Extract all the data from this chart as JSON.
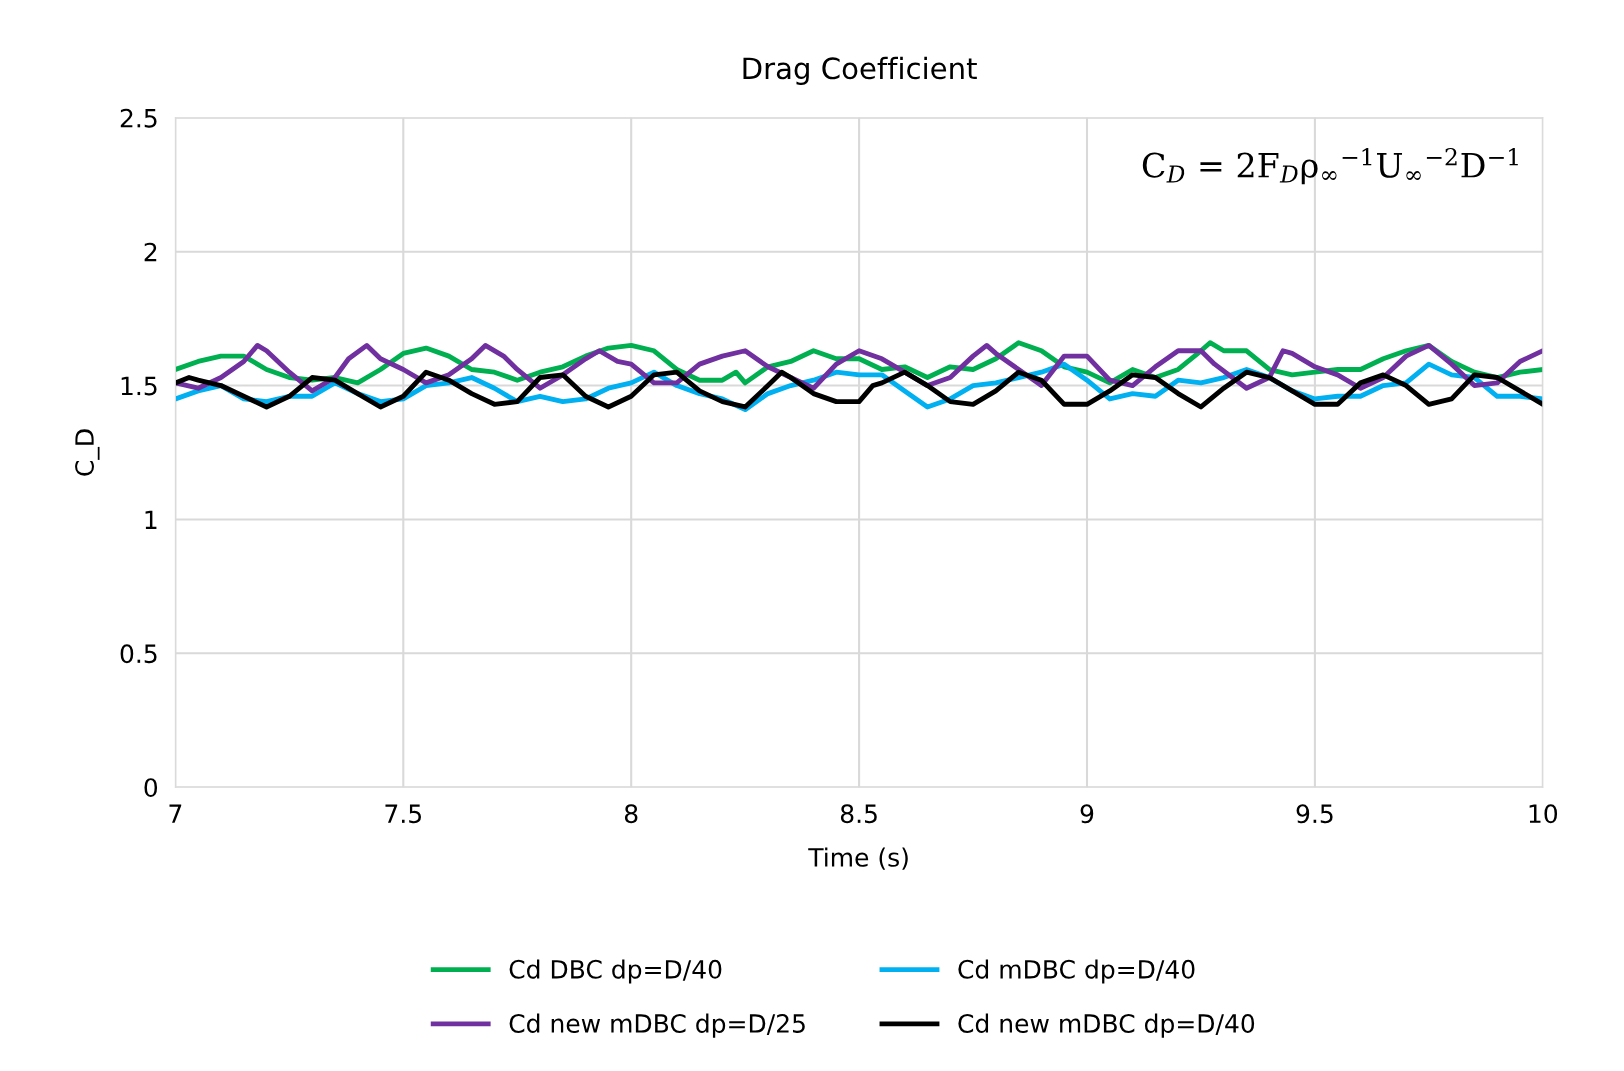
{
  "chart_data": {
    "type": "line",
    "title": "Drag Coefficient",
    "xlabel": "Time (s)",
    "ylabel": "C_D",
    "xlim": [
      7,
      10
    ],
    "xticks": [
      7,
      7.5,
      8,
      8.5,
      9,
      9.5,
      10
    ],
    "ylim": [
      0,
      2.5
    ],
    "yticks": [
      0,
      0.5,
      1,
      1.5,
      2,
      2.5
    ],
    "grid": true,
    "legend": "bottom",
    "marker": "none",
    "line_style": "solid",
    "annotations": [
      "C$_{D}$ = 2F$_{D}$ρ$_{∞}$$^{−1}$U$_{∞}$$^{−2}$D$^{−1}$"
    ],
    "series": [
      {
        "name": "Cd DBC dp=D/40",
        "color": "#00b050",
        "x": [
          7.0,
          7.05,
          7.1,
          7.15,
          7.2,
          7.25,
          7.3,
          7.35,
          7.4,
          7.45,
          7.5,
          7.55,
          7.6,
          7.65,
          7.7,
          7.75,
          7.8,
          7.85,
          7.9,
          7.95,
          8.0,
          8.05,
          8.1,
          8.15,
          8.2,
          8.23,
          8.25,
          8.3,
          8.35,
          8.4,
          8.45,
          8.5,
          8.55,
          8.6,
          8.65,
          8.7,
          8.75,
          8.8,
          8.85,
          8.9,
          8.95,
          9.0,
          9.05,
          9.1,
          9.15,
          9.2,
          9.25,
          9.27,
          9.3,
          9.35,
          9.4,
          9.45,
          9.5,
          9.55,
          9.6,
          9.65,
          9.7,
          9.75,
          9.8,
          9.85,
          9.9,
          9.95,
          10.0
        ],
        "values": [
          1.56,
          1.59,
          1.61,
          1.61,
          1.56,
          1.53,
          1.52,
          1.53,
          1.51,
          1.56,
          1.62,
          1.64,
          1.61,
          1.56,
          1.55,
          1.52,
          1.55,
          1.57,
          1.61,
          1.64,
          1.65,
          1.63,
          1.56,
          1.52,
          1.52,
          1.55,
          1.51,
          1.57,
          1.59,
          1.63,
          1.6,
          1.6,
          1.56,
          1.57,
          1.53,
          1.57,
          1.56,
          1.6,
          1.66,
          1.63,
          1.57,
          1.55,
          1.51,
          1.56,
          1.53,
          1.56,
          1.63,
          1.66,
          1.63,
          1.63,
          1.56,
          1.54,
          1.55,
          1.56,
          1.56,
          1.6,
          1.63,
          1.65,
          1.59,
          1.55,
          1.53,
          1.55,
          1.56
        ]
      },
      {
        "name": "Cd mDBC dp=D/40",
        "color": "#00b0f0",
        "x": [
          7.0,
          7.05,
          7.1,
          7.15,
          7.2,
          7.25,
          7.3,
          7.35,
          7.4,
          7.45,
          7.5,
          7.55,
          7.6,
          7.65,
          7.7,
          7.75,
          7.8,
          7.85,
          7.9,
          7.95,
          8.0,
          8.05,
          8.1,
          8.15,
          8.2,
          8.25,
          8.3,
          8.35,
          8.4,
          8.45,
          8.5,
          8.55,
          8.6,
          8.65,
          8.7,
          8.75,
          8.8,
          8.85,
          8.9,
          8.95,
          9.0,
          9.05,
          9.1,
          9.15,
          9.2,
          9.25,
          9.3,
          9.35,
          9.4,
          9.45,
          9.5,
          9.55,
          9.6,
          9.65,
          9.7,
          9.75,
          9.8,
          9.85,
          9.9,
          9.95,
          10.0
        ],
        "values": [
          1.45,
          1.48,
          1.5,
          1.45,
          1.44,
          1.46,
          1.46,
          1.51,
          1.47,
          1.44,
          1.45,
          1.5,
          1.51,
          1.53,
          1.49,
          1.44,
          1.46,
          1.44,
          1.45,
          1.49,
          1.51,
          1.55,
          1.5,
          1.47,
          1.45,
          1.41,
          1.47,
          1.5,
          1.52,
          1.55,
          1.54,
          1.54,
          1.48,
          1.42,
          1.45,
          1.5,
          1.51,
          1.53,
          1.55,
          1.58,
          1.52,
          1.45,
          1.47,
          1.46,
          1.52,
          1.51,
          1.53,
          1.56,
          1.53,
          1.48,
          1.45,
          1.46,
          1.46,
          1.5,
          1.51,
          1.58,
          1.54,
          1.53,
          1.46,
          1.46,
          1.45
        ]
      },
      {
        "name": "Cd new mDBC dp=D/25",
        "color": "#7030a0",
        "x": [
          7.0,
          7.05,
          7.1,
          7.15,
          7.18,
          7.2,
          7.25,
          7.3,
          7.35,
          7.38,
          7.42,
          7.45,
          7.5,
          7.55,
          7.6,
          7.65,
          7.68,
          7.72,
          7.75,
          7.8,
          7.85,
          7.9,
          7.93,
          7.97,
          8.0,
          8.05,
          8.1,
          8.15,
          8.2,
          8.25,
          8.3,
          8.35,
          8.4,
          8.45,
          8.5,
          8.55,
          8.6,
          8.65,
          8.7,
          8.75,
          8.78,
          8.8,
          8.85,
          8.9,
          8.95,
          9.0,
          9.05,
          9.1,
          9.15,
          9.2,
          9.25,
          9.28,
          9.35,
          9.4,
          9.43,
          9.45,
          9.5,
          9.55,
          9.6,
          9.65,
          9.7,
          9.75,
          9.8,
          9.85,
          9.9,
          9.95,
          10.0
        ],
        "values": [
          1.51,
          1.49,
          1.53,
          1.59,
          1.65,
          1.63,
          1.55,
          1.48,
          1.53,
          1.6,
          1.65,
          1.6,
          1.56,
          1.51,
          1.54,
          1.6,
          1.65,
          1.61,
          1.56,
          1.49,
          1.54,
          1.6,
          1.63,
          1.59,
          1.58,
          1.51,
          1.51,
          1.58,
          1.61,
          1.63,
          1.57,
          1.53,
          1.49,
          1.58,
          1.63,
          1.6,
          1.55,
          1.5,
          1.53,
          1.61,
          1.65,
          1.62,
          1.56,
          1.5,
          1.61,
          1.61,
          1.52,
          1.5,
          1.57,
          1.63,
          1.63,
          1.58,
          1.49,
          1.53,
          1.63,
          1.62,
          1.57,
          1.54,
          1.49,
          1.53,
          1.61,
          1.65,
          1.58,
          1.5,
          1.51,
          1.59,
          1.63
        ]
      },
      {
        "name": "Cd new mDBC dp=D/40",
        "color": "#000000",
        "x": [
          7.0,
          7.03,
          7.05,
          7.1,
          7.15,
          7.2,
          7.25,
          7.3,
          7.35,
          7.4,
          7.45,
          7.5,
          7.55,
          7.6,
          7.65,
          7.7,
          7.75,
          7.8,
          7.85,
          7.9,
          7.95,
          8.0,
          8.05,
          8.1,
          8.15,
          8.2,
          8.25,
          8.3,
          8.33,
          8.35,
          8.4,
          8.45,
          8.5,
          8.53,
          8.55,
          8.6,
          8.65,
          8.7,
          8.75,
          8.8,
          8.85,
          8.9,
          8.95,
          9.0,
          9.05,
          9.1,
          9.15,
          9.2,
          9.25,
          9.3,
          9.35,
          9.4,
          9.45,
          9.5,
          9.55,
          9.6,
          9.65,
          9.7,
          9.75,
          9.8,
          9.85,
          9.9,
          9.95,
          10.0
        ],
        "values": [
          1.51,
          1.53,
          1.52,
          1.5,
          1.46,
          1.42,
          1.46,
          1.53,
          1.52,
          1.47,
          1.42,
          1.46,
          1.55,
          1.52,
          1.47,
          1.43,
          1.44,
          1.53,
          1.54,
          1.46,
          1.42,
          1.46,
          1.54,
          1.55,
          1.48,
          1.44,
          1.42,
          1.5,
          1.55,
          1.53,
          1.47,
          1.44,
          1.44,
          1.5,
          1.51,
          1.55,
          1.5,
          1.44,
          1.43,
          1.48,
          1.55,
          1.52,
          1.43,
          1.43,
          1.48,
          1.54,
          1.53,
          1.47,
          1.42,
          1.49,
          1.55,
          1.53,
          1.48,
          1.43,
          1.43,
          1.51,
          1.54,
          1.5,
          1.43,
          1.45,
          1.54,
          1.53,
          1.48,
          1.43
        ]
      }
    ]
  }
}
